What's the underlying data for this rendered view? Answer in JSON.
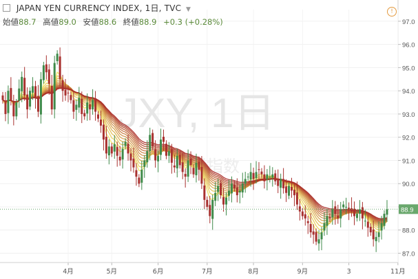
{
  "header": {
    "title": "JAPAN YEN CURRENCY INDEX, 1日, TVC",
    "alert_icon": "alert-clock-icon",
    "ohlc": {
      "open_label": "始値",
      "open": "88.7",
      "high_label": "高値",
      "high": "89.0",
      "low_label": "安値",
      "low": "88.6",
      "close_label": "終値",
      "close": "88.9",
      "change": "+0.3 (+0.28%)"
    }
  },
  "watermark": {
    "symbol": "JXY, 1日",
    "subtitle": "货币指数"
  },
  "colors": {
    "up": "#3f8a4a",
    "down": "#a8312f",
    "background": "#ffffff",
    "ribbon_fast": "#f2e35a",
    "ribbon_slow": "#a6241f",
    "last_price_bg": "#6aa86d"
  },
  "chart_data": {
    "type": "candlestick",
    "ylim": [
      86.6,
      97.5
    ],
    "y_ticks": [
      "97.0",
      "96.0",
      "95.0",
      "94.0",
      "93.0",
      "92.0",
      "91.0",
      "90.0",
      "89.0",
      "88.0",
      "87.0"
    ],
    "x_ticks": [
      {
        "label": "4月",
        "i": 24
      },
      {
        "label": "5月",
        "i": 40
      },
      {
        "label": "6月",
        "i": 57
      },
      {
        "label": "7月",
        "i": 75
      },
      {
        "label": "8月",
        "i": 92
      },
      {
        "label": "9月",
        "i": 110
      },
      {
        "label": "3",
        "i": 127
      },
      {
        "label": "11月",
        "i": 145
      }
    ],
    "last_price": "88.9",
    "closes": [
      93.6,
      93.0,
      94.0,
      93.6,
      92.9,
      93.5,
      94.1,
      94.6,
      93.8,
      93.2,
      94.0,
      94.2,
      93.7,
      93.1,
      94.5,
      95.1,
      94.8,
      94.3,
      93.2,
      95.2,
      95.6,
      94.5,
      94.0,
      93.8,
      93.9,
      93.6,
      93.1,
      93.4,
      93.7,
      93.0,
      92.9,
      93.5,
      93.2,
      93.6,
      93.1,
      92.8,
      92.5,
      91.9,
      91.3,
      91.6,
      91.3,
      91.7,
      91.2,
      91.0,
      91.5,
      91.8,
      91.3,
      91.0,
      90.7,
      90.3,
      90.0,
      90.6,
      91.0,
      91.4,
      92.1,
      91.6,
      91.0,
      91.2,
      91.9,
      91.8,
      91.2,
      91.4,
      90.9,
      90.7,
      91.2,
      90.8,
      90.5,
      90.3,
      91.0,
      90.8,
      90.4,
      90.9,
      90.6,
      90.0,
      89.3,
      89.0,
      88.6,
      89.3,
      89.6,
      89.9,
      89.5,
      89.1,
      89.4,
      89.7,
      90.0,
      89.8,
      89.5,
      89.7,
      90.0,
      90.2,
      90.3,
      90.5,
      90.2,
      90.5,
      90.6,
      90.4,
      90.1,
      90.4,
      90.3,
      90.4,
      90.1,
      89.9,
      90.2,
      89.8,
      89.6,
      89.9,
      89.7,
      89.5,
      89.1,
      88.8,
      88.6,
      88.5,
      88.3,
      87.9,
      87.8,
      87.5,
      87.6,
      87.9,
      88.3,
      88.6,
      88.5,
      88.9,
      88.7,
      88.5,
      88.9,
      89.1,
      89.0,
      88.9,
      88.8,
      88.6,
      88.7,
      88.9,
      88.5,
      88.4,
      88.1,
      87.9,
      87.6,
      87.7,
      87.9,
      88.3,
      88.7,
      88.9
    ]
  }
}
